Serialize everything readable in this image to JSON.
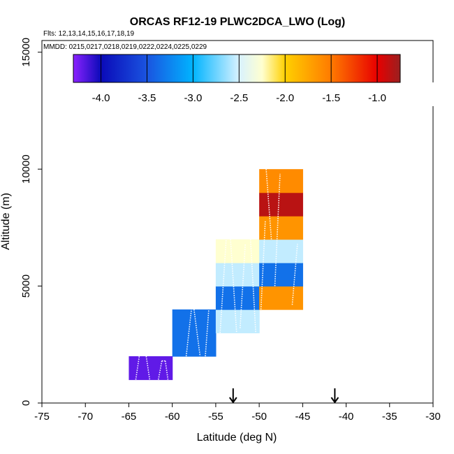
{
  "chart_data": {
    "type": "heatmap",
    "title": "ORCAS RF12-19 PLWC2DCA_LWO (Log)",
    "flights_note": "Flts: 12,13,14,15,16,17,18,19",
    "dates_note": "MMDD: 0215,0217,0218,0219,0222,0224,0225,0229",
    "xlabel": "Latitude (deg N)",
    "ylabel": "Altitude (m)",
    "xlim": [
      -75,
      -30
    ],
    "ylim": [
      0,
      15500
    ],
    "x_ticks": [
      -75,
      -70,
      -65,
      -60,
      -55,
      -50,
      -45,
      -40,
      -35,
      -30
    ],
    "y_ticks": [
      0,
      5000,
      10000,
      15000
    ],
    "colorbar": {
      "range": [
        -4.3,
        -0.75
      ],
      "ticks": [
        -4.0,
        -3.5,
        -3.0,
        -2.5,
        -2.0,
        -1.5,
        -1.0
      ],
      "tick_labels": [
        "-4.0",
        "-3.5",
        "-3.0",
        "-2.5",
        "-2.0",
        "-1.5",
        "-1.0"
      ],
      "color_stops": [
        {
          "v": -4.3,
          "c": "#8b22ff"
        },
        {
          "v": -4.0,
          "c": "#0a0ab8"
        },
        {
          "v": -3.5,
          "c": "#1a54e0"
        },
        {
          "v": -3.0,
          "c": "#00b4ff"
        },
        {
          "v": -2.5,
          "c": "#d8f2ff"
        },
        {
          "v": -2.25,
          "c": "#ffffd0"
        },
        {
          "v": -2.0,
          "c": "#ffd000"
        },
        {
          "v": -1.5,
          "c": "#ff7a00"
        },
        {
          "v": -1.0,
          "c": "#e80000"
        },
        {
          "v": -0.75,
          "c": "#9a2020"
        }
      ]
    },
    "cells": [
      {
        "lat_min": -65,
        "lat_max": -60,
        "alt_min": 1000,
        "alt_max": 2000,
        "value": -4.2
      },
      {
        "lat_min": -60,
        "lat_max": -55,
        "alt_min": 2000,
        "alt_max": 4000,
        "value": -3.35
      },
      {
        "lat_min": -55,
        "lat_max": -50,
        "alt_min": 3000,
        "alt_max": 4000,
        "value": -2.55
      },
      {
        "lat_min": -55,
        "lat_max": -50,
        "alt_min": 4000,
        "alt_max": 5000,
        "value": -3.35
      },
      {
        "lat_min": -55,
        "lat_max": -50,
        "alt_min": 5000,
        "alt_max": 6000,
        "value": -2.55
      },
      {
        "lat_min": -55,
        "lat_max": -50,
        "alt_min": 6000,
        "alt_max": 7000,
        "value": -2.25
      },
      {
        "lat_min": -50,
        "lat_max": -45,
        "alt_min": 4000,
        "alt_max": 5000,
        "value": -1.65
      },
      {
        "lat_min": -50,
        "lat_max": -45,
        "alt_min": 5000,
        "alt_max": 6000,
        "value": -3.35
      },
      {
        "lat_min": -50,
        "lat_max": -45,
        "alt_min": 6000,
        "alt_max": 7000,
        "value": -2.55
      },
      {
        "lat_min": -50,
        "lat_max": -45,
        "alt_min": 7000,
        "alt_max": 8000,
        "value": -1.65
      },
      {
        "lat_min": -50,
        "lat_max": -45,
        "alt_min": 8000,
        "alt_max": 9000,
        "value": -0.85
      },
      {
        "lat_min": -50,
        "lat_max": -45,
        "alt_min": 9000,
        "alt_max": 10000,
        "value": -1.6
      }
    ],
    "arrows_at_lat": [
      -53,
      -41.3
    ],
    "flight_tracks": [
      [
        [
          -64.2,
          1000
        ],
        [
          -63.8,
          2000
        ]
      ],
      [
        [
          -63.0,
          2000
        ],
        [
          -62.6,
          1000
        ]
      ],
      [
        [
          -61.6,
          1000
        ],
        [
          -61.2,
          1800
        ]
      ],
      [
        [
          -61.2,
          1800
        ],
        [
          -60.8,
          1800
        ]
      ],
      [
        [
          -60.8,
          1800
        ],
        [
          -60.5,
          1000
        ]
      ],
      [
        [
          -58.4,
          2000
        ],
        [
          -57.8,
          4000
        ]
      ],
      [
        [
          -57.5,
          4000
        ],
        [
          -56.8,
          2000
        ]
      ],
      [
        [
          -56.2,
          2000
        ],
        [
          -55.8,
          4000
        ]
      ],
      [
        [
          -54.5,
          3000
        ],
        [
          -53.8,
          7000
        ]
      ],
      [
        [
          -53.3,
          7000
        ],
        [
          -52.6,
          3000
        ]
      ],
      [
        [
          -52.2,
          3200
        ],
        [
          -51.6,
          6800
        ]
      ],
      [
        [
          -51.0,
          7000
        ],
        [
          -50.4,
          3000
        ]
      ],
      [
        [
          -49.8,
          4000
        ],
        [
          -49.3,
          7800
        ]
      ],
      [
        [
          -49.2,
          10000
        ],
        [
          -48.6,
          7000
        ]
      ],
      [
        [
          -48.2,
          5000
        ],
        [
          -47.6,
          9800
        ]
      ],
      [
        [
          -46.2,
          4200
        ],
        [
          -45.6,
          6800
        ]
      ]
    ]
  }
}
